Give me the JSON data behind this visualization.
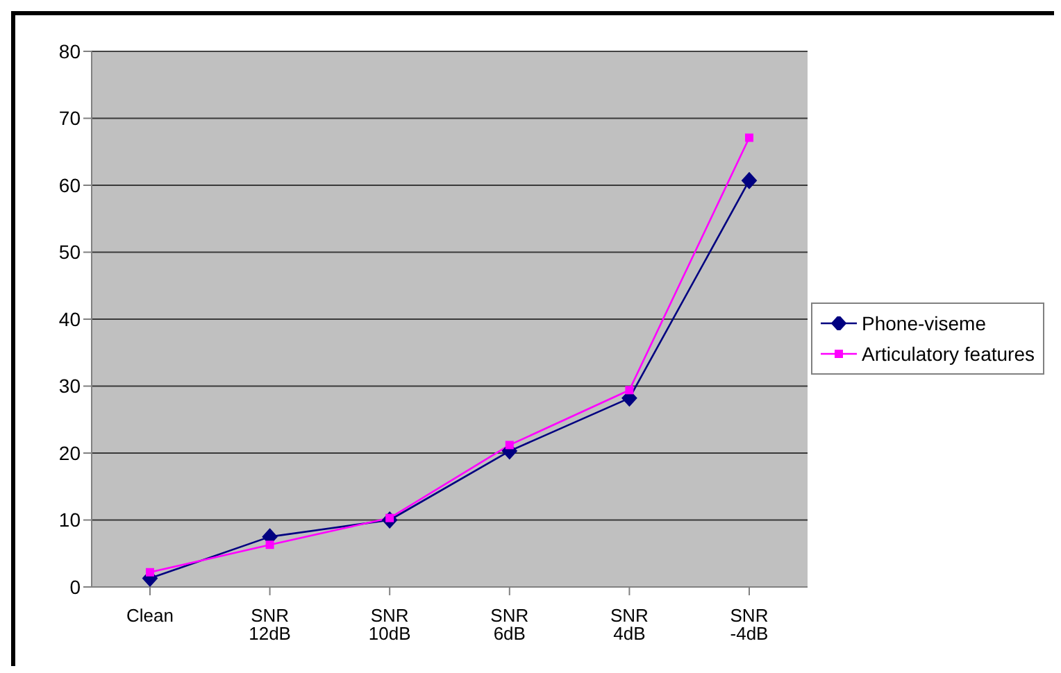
{
  "chart_data": {
    "type": "line",
    "categories": [
      "Clean",
      "SNR 12dB",
      "SNR 10dB",
      "SNR 6dB",
      "SNR 4dB",
      "SNR -4dB"
    ],
    "series": [
      {
        "name": "Phone-viseme",
        "color": "#000080",
        "marker": "diamond",
        "values": [
          1.3,
          7.5,
          10,
          20.3,
          28.2,
          60.7
        ]
      },
      {
        "name": "Articulatory features",
        "color": "#ff00ff",
        "marker": "square",
        "values": [
          2.2,
          6.3,
          10.3,
          21.2,
          29.4,
          67.1
        ]
      }
    ],
    "ylim": [
      0,
      80
    ],
    "yticks": [
      0,
      10,
      20,
      30,
      40,
      50,
      60,
      70,
      80
    ],
    "grid": "y",
    "legend": "right"
  }
}
